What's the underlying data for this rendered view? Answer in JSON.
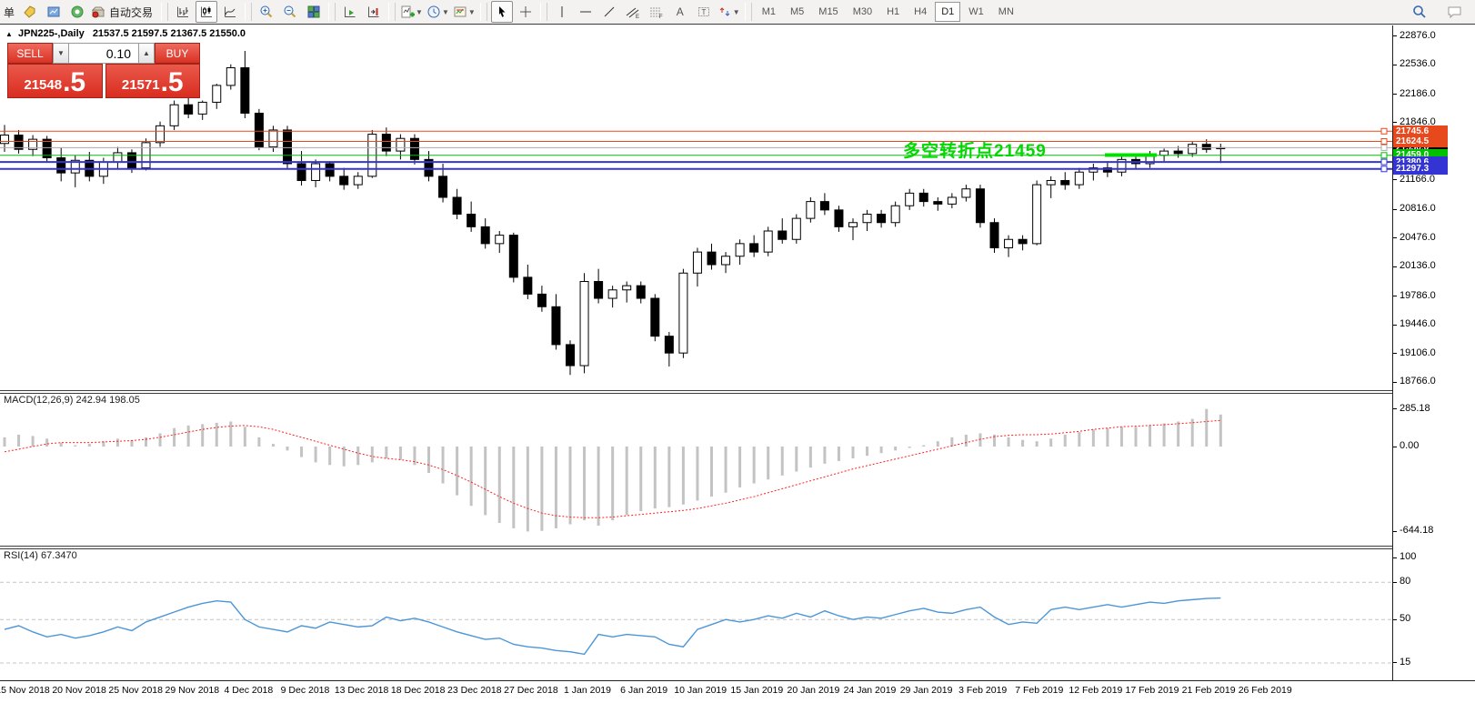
{
  "toolbar": {
    "left_text": "单",
    "autotrading_label": "自动交易",
    "timeframes": [
      "M1",
      "M5",
      "M15",
      "M30",
      "H1",
      "H4",
      "D1",
      "W1",
      "MN"
    ],
    "selected_timeframe": "D1",
    "icons": [
      "new-order-icon",
      "market-watch-icon",
      "navigator-icon",
      "autotrading-icon",
      "bar-chart-icon",
      "candlestick-chart-icon",
      "line-chart-icon",
      "zoom-in-icon",
      "zoom-out-icon",
      "tile-windows-icon",
      "auto-scroll-icon",
      "chart-shift-icon",
      "indicators-icon",
      "periods-icon",
      "templates-icon",
      "cursor-icon",
      "crosshair-icon",
      "vertical-line-icon",
      "horizontal-line-icon",
      "trendline-icon",
      "equidistant-channel-icon",
      "fibonacci-icon",
      "text-icon",
      "text-label-icon",
      "arrows-icon",
      "search-icon",
      "chat-icon"
    ]
  },
  "colors": {
    "line_orange": "#e8491c",
    "line_green": "#00c000",
    "line_blue": "#3434d4",
    "line_gray": "#ababab",
    "annotation_green": "#00d800",
    "macd_hist": "#c3c3c3",
    "macd_signal": "#ff2020",
    "rsi_line": "#4c96d8",
    "panel_red": "#dd3426",
    "bull_candle": "#ffffff",
    "bear_candle": "#000000"
  },
  "chart": {
    "title_symbol": "JPN225-,Daily",
    "title_ohlc": "21537.5 21597.5 21367.5 21550.0",
    "trade_panel": {
      "sell_label": "SELL",
      "buy_label": "BUY",
      "volume": "0.10",
      "sell_price_main": "21548",
      "sell_price_big": ".5",
      "buy_price_main": "21571",
      "buy_price_big": ".5"
    },
    "annotation": {
      "text": "多空转折点21459",
      "color": "#00d800"
    },
    "trend_segment": {
      "price": 21462,
      "x_start": 1215,
      "x_end": 1272,
      "color": "#00e000",
      "thickness": 4
    },
    "price_lines": [
      {
        "price": 21550.0,
        "label": "21550.0",
        "color": "#ababab",
        "tag_color": "#000000",
        "thickness": 1,
        "is_current": true
      },
      {
        "price": 21745.6,
        "label": "21745.6",
        "color": "#e8491c",
        "thickness": 1
      },
      {
        "price": 21624.5,
        "label": "21624.5",
        "color": "#e8491c",
        "thickness": 1
      },
      {
        "price": 21459.0,
        "label": "21459.0",
        "color": "#00c000",
        "thickness": 1
      },
      {
        "price": 21380.6,
        "label": "21380.6",
        "color": "#3434d4",
        "thickness": 2
      },
      {
        "price": 21297.3,
        "label": "21297.3",
        "color": "#3434d4",
        "thickness": 2
      }
    ],
    "y_ticks": [
      22876.0,
      22536.0,
      22186.0,
      21846.0,
      21166.0,
      20816.0,
      20476.0,
      20136.0,
      19786.0,
      19446.0,
      19106.0,
      18766.0
    ],
    "x_labels": [
      "15 Nov 2018",
      "20 Nov 2018",
      "25 Nov 2018",
      "29 Nov 2018",
      "4 Dec 2018",
      "9 Dec 2018",
      "13 Dec 2018",
      "18 Dec 2018",
      "23 Dec 2018",
      "27 Dec 2018",
      "1 Jan 2019",
      "6 Jan 2019",
      "10 Jan 2019",
      "15 Jan 2019",
      "20 Jan 2019",
      "24 Jan 2019",
      "29 Jan 2019",
      "3 Feb 2019",
      "7 Feb 2019",
      "12 Feb 2019",
      "17 Feb 2019",
      "21 Feb 2019",
      "26 Feb 2019"
    ]
  },
  "macd": {
    "title": "MACD(12,26,9) 242.94 198.05",
    "y_tick_labels": [
      "285.18",
      "0.00",
      "-644.18"
    ],
    "y_tick_values": [
      285.18,
      0,
      -644.18
    ]
  },
  "rsi": {
    "title": "RSI(14) 67.3470",
    "y_tick_values": [
      100,
      80,
      50,
      15
    ]
  },
  "chart_data": [
    {
      "type": "candlestick",
      "symbol": "JPN225-",
      "timeframe": "Daily",
      "title": "JPN225-,Daily",
      "ylim": [
        18766.0,
        22876.0
      ],
      "current_ohlc": {
        "open": 21537.5,
        "high": 21597.5,
        "low": 21367.5,
        "close": 21550.0
      },
      "ohlc": [
        [
          21600,
          21820,
          21500,
          21700
        ],
        [
          21700,
          21760,
          21480,
          21530
        ],
        [
          21530,
          21700,
          21450,
          21650
        ],
        [
          21650,
          21690,
          21380,
          21430
        ],
        [
          21430,
          21550,
          21150,
          21250
        ],
        [
          21250,
          21460,
          21080,
          21400
        ],
        [
          21400,
          21500,
          21150,
          21210
        ],
        [
          21210,
          21430,
          21120,
          21380
        ],
        [
          21380,
          21560,
          21300,
          21490
        ],
        [
          21490,
          21530,
          21250,
          21310
        ],
        [
          21310,
          21660,
          21280,
          21610
        ],
        [
          21610,
          21860,
          21560,
          21810
        ],
        [
          21810,
          22110,
          21760,
          22060
        ],
        [
          22060,
          22160,
          21900,
          21950
        ],
        [
          21950,
          22110,
          21880,
          22090
        ],
        [
          22090,
          22310,
          22010,
          22290
        ],
        [
          22290,
          22540,
          22240,
          22500
        ],
        [
          22500,
          22700,
          21900,
          21960
        ],
        [
          21960,
          22010,
          21520,
          21560
        ],
        [
          21560,
          21810,
          21500,
          21760
        ],
        [
          21760,
          21810,
          21300,
          21360
        ],
        [
          21360,
          21510,
          21100,
          21160
        ],
        [
          21160,
          21410,
          21080,
          21360
        ],
        [
          21360,
          21390,
          21150,
          21210
        ],
        [
          21210,
          21310,
          21050,
          21110
        ],
        [
          21110,
          21260,
          21060,
          21210
        ],
        [
          21210,
          21760,
          21190,
          21710
        ],
        [
          21710,
          21790,
          21450,
          21510
        ],
        [
          21510,
          21710,
          21410,
          21660
        ],
        [
          21660,
          21710,
          21350,
          21410
        ],
        [
          21410,
          21510,
          21150,
          21210
        ],
        [
          21210,
          21360,
          20900,
          20960
        ],
        [
          20960,
          21060,
          20700,
          20760
        ],
        [
          20760,
          20910,
          20550,
          20610
        ],
        [
          20610,
          20710,
          20350,
          20410
        ],
        [
          20410,
          20560,
          20300,
          20510
        ],
        [
          20510,
          20540,
          19950,
          20010
        ],
        [
          20010,
          20160,
          19750,
          19810
        ],
        [
          19810,
          19910,
          19600,
          19660
        ],
        [
          19660,
          19810,
          19150,
          19210
        ],
        [
          19210,
          19260,
          18850,
          18960
        ],
        [
          18960,
          20060,
          18870,
          19960
        ],
        [
          19960,
          20110,
          19700,
          19760
        ],
        [
          19760,
          19910,
          19650,
          19860
        ],
        [
          19860,
          19960,
          19710,
          19910
        ],
        [
          19910,
          19960,
          19700,
          19760
        ],
        [
          19760,
          19810,
          19250,
          19310
        ],
        [
          19310,
          19360,
          18950,
          19110
        ],
        [
          19110,
          20110,
          19050,
          20060
        ],
        [
          20060,
          20360,
          19900,
          20310
        ],
        [
          20310,
          20410,
          20100,
          20160
        ],
        [
          20160,
          20310,
          20060,
          20260
        ],
        [
          20260,
          20460,
          20160,
          20410
        ],
        [
          20410,
          20510,
          20250,
          20310
        ],
        [
          20310,
          20610,
          20260,
          20560
        ],
        [
          20560,
          20710,
          20410,
          20460
        ],
        [
          20460,
          20760,
          20410,
          20710
        ],
        [
          20710,
          20960,
          20660,
          20910
        ],
        [
          20910,
          21010,
          20750,
          20810
        ],
        [
          20810,
          20860,
          20550,
          20610
        ],
        [
          20610,
          20710,
          20450,
          20660
        ],
        [
          20660,
          20810,
          20560,
          20760
        ],
        [
          20760,
          20810,
          20600,
          20660
        ],
        [
          20660,
          20910,
          20610,
          20860
        ],
        [
          20860,
          21060,
          20810,
          21010
        ],
        [
          21010,
          21060,
          20850,
          20910
        ],
        [
          20910,
          20960,
          20800,
          20880
        ],
        [
          20880,
          21010,
          20830,
          20960
        ],
        [
          20960,
          21110,
          20910,
          21060
        ],
        [
          21060,
          21110,
          20600,
          20660
        ],
        [
          20660,
          20710,
          20300,
          20360
        ],
        [
          20360,
          20510,
          20250,
          20460
        ],
        [
          20460,
          20510,
          20330,
          20410
        ],
        [
          20410,
          21160,
          20390,
          21110
        ],
        [
          21110,
          21210,
          20950,
          21160
        ],
        [
          21160,
          21260,
          21050,
          21110
        ],
        [
          21110,
          21310,
          21060,
          21260
        ],
        [
          21260,
          21360,
          21160,
          21310
        ],
        [
          21310,
          21390,
          21200,
          21260
        ],
        [
          21260,
          21460,
          21210,
          21410
        ],
        [
          21410,
          21480,
          21300,
          21360
        ],
        [
          21360,
          21510,
          21310,
          21460
        ],
        [
          21460,
          21540,
          21390,
          21510
        ],
        [
          21510,
          21570,
          21430,
          21480
        ],
        [
          21480,
          21630,
          21440,
          21590
        ],
        [
          21590,
          21650,
          21490,
          21530
        ],
        [
          21537.5,
          21597.5,
          21367.5,
          21550
        ]
      ]
    },
    {
      "type": "bar",
      "name": "MACD histogram",
      "ylim": [
        -644.18,
        285.18
      ],
      "current": 242.94,
      "current_signal": 198.05,
      "values": [
        70,
        90,
        80,
        60,
        30,
        10,
        20,
        40,
        60,
        50,
        70,
        100,
        140,
        160,
        170,
        180,
        190,
        150,
        70,
        20,
        -30,
        -80,
        -120,
        -140,
        -150,
        -140,
        -120,
        -90,
        -100,
        -140,
        -200,
        -280,
        -370,
        -450,
        -520,
        -580,
        -620,
        -644,
        -640,
        -620,
        -590,
        -560,
        -600,
        -560,
        -520,
        -490,
        -470,
        -460,
        -440,
        -410,
        -380,
        -350,
        -310,
        -280,
        -250,
        -220,
        -190,
        -160,
        -130,
        -110,
        -90,
        -70,
        -50,
        -30,
        -10,
        10,
        40,
        70,
        90,
        100,
        90,
        70,
        50,
        40,
        60,
        90,
        110,
        130,
        140,
        150,
        150,
        162,
        175,
        190,
        210,
        285,
        243
      ],
      "signal": [
        -40,
        -20,
        0,
        20,
        30,
        30,
        30,
        35,
        40,
        45,
        55,
        70,
        90,
        110,
        130,
        145,
        155,
        160,
        150,
        130,
        100,
        70,
        40,
        10,
        -20,
        -50,
        -75,
        -90,
        -100,
        -115,
        -140,
        -175,
        -220,
        -270,
        -325,
        -380,
        -430,
        -470,
        -505,
        -525,
        -535,
        -540,
        -540,
        -535,
        -525,
        -515,
        -505,
        -495,
        -485,
        -470,
        -450,
        -430,
        -405,
        -380,
        -350,
        -320,
        -290,
        -260,
        -230,
        -200,
        -170,
        -145,
        -120,
        -95,
        -70,
        -45,
        -20,
        5,
        30,
        55,
        75,
        85,
        90,
        90,
        95,
        105,
        115,
        130,
        140,
        150,
        155,
        160,
        166,
        173,
        181,
        190,
        198
      ]
    },
    {
      "type": "line",
      "name": "RSI",
      "ylim": [
        0,
        100
      ],
      "levels": [
        80,
        50,
        15
      ],
      "current": 67.347,
      "values": [
        42,
        45,
        40,
        36,
        38,
        35,
        37,
        40,
        44,
        41,
        48,
        52,
        56,
        60,
        63,
        65,
        64,
        50,
        44,
        42,
        40,
        45,
        43,
        48,
        46,
        44,
        45,
        52,
        49,
        51,
        48,
        44,
        40,
        37,
        34,
        35,
        30,
        28,
        27,
        25,
        24,
        22,
        38,
        36,
        38,
        37,
        36,
        30,
        28,
        42,
        46,
        50,
        48,
        50,
        53,
        51,
        55,
        52,
        57,
        53,
        50,
        52,
        51,
        54,
        57,
        59,
        56,
        55,
        58,
        60,
        52,
        46,
        48,
        47,
        58,
        60,
        58,
        60,
        62,
        60,
        62,
        64,
        63,
        65,
        66,
        67,
        67.35
      ]
    }
  ]
}
